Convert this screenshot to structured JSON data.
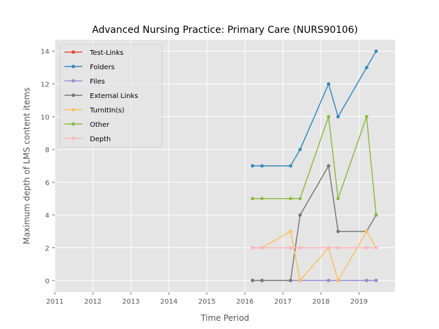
{
  "chart_data": {
    "type": "line",
    "title": "Advanced Nursing Practice: Primary Care (NURS90106)",
    "xlabel": "Time Period",
    "ylabel": "Maximum depth of LMS content items",
    "xlim": [
      2011,
      2019.95
    ],
    "ylim": [
      -0.7,
      14.7
    ],
    "xticks": [
      2011,
      2012,
      2013,
      2014,
      2015,
      2016,
      2017,
      2018,
      2019
    ],
    "yticks": [
      0,
      2,
      4,
      6,
      8,
      10,
      12,
      14
    ],
    "grid": true,
    "legend_position": "upper-left",
    "x": [
      2016.2,
      2016.45,
      2017.2,
      2017.45,
      2018.2,
      2018.45,
      2019.2,
      2019.45
    ],
    "series": [
      {
        "name": "Test-Links",
        "color": "#E24A33",
        "values": [
          0,
          0,
          0,
          0,
          0,
          0,
          0,
          0
        ]
      },
      {
        "name": "Folders",
        "color": "#348ABD",
        "values": [
          7,
          7,
          7,
          8,
          12,
          10,
          13,
          14
        ]
      },
      {
        "name": "Files",
        "color": "#988ED5",
        "values": [
          0,
          0,
          0,
          0,
          0,
          0,
          0,
          0
        ]
      },
      {
        "name": "External Links",
        "color": "#777777",
        "values": [
          0,
          0,
          0,
          4,
          7,
          3,
          3,
          4
        ]
      },
      {
        "name": "TurnItIn(s)",
        "color": "#FBC15E",
        "values": [
          2,
          2,
          3,
          0,
          2,
          0,
          3,
          2
        ]
      },
      {
        "name": "Other",
        "color": "#8EBA42",
        "values": [
          5,
          5,
          5,
          5,
          10,
          5,
          10,
          4
        ]
      },
      {
        "name": "Depth",
        "color": "#FFB5B8",
        "values": [
          2,
          2,
          2,
          2,
          2,
          2,
          2,
          2
        ]
      }
    ]
  }
}
